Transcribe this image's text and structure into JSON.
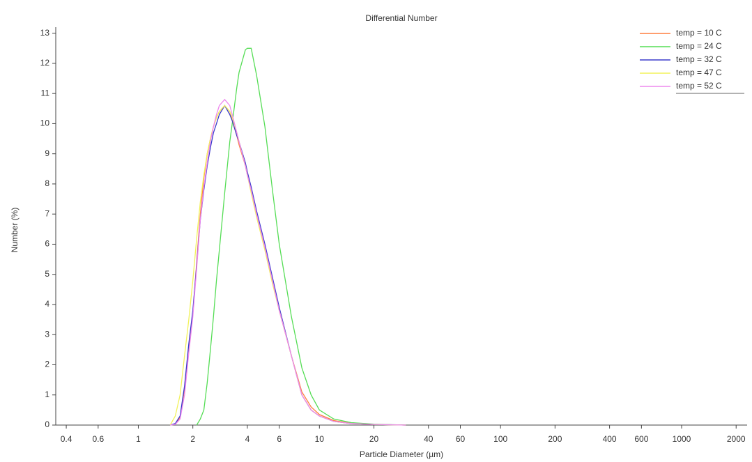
{
  "chart_data": {
    "type": "line",
    "title": "Differential Number",
    "x_label": "Particle Diameter (µm)",
    "y_label": "Number (%)",
    "x_scale": "log",
    "legend": "top-right",
    "grid": false,
    "x": [
      1.5,
      1.6,
      1.7,
      1.8,
      1.9,
      2.0,
      2.1,
      2.2,
      2.3,
      2.4,
      2.5,
      2.6,
      2.7,
      2.8,
      3.0,
      3.2,
      3.3,
      3.5,
      3.6,
      3.9,
      4.0,
      4.2,
      4.5,
      5.0,
      5.5,
      6.0,
      7.0,
      8.0,
      9.0,
      10,
      12,
      15,
      20,
      30
    ],
    "series": [
      {
        "name": "temp = 10 C",
        "color": "#ff7f3f",
        "values": [
          0,
          0.03,
          0.25,
          1.2,
          2.6,
          3.7,
          5.4,
          7.0,
          8.2,
          9.0,
          9.5,
          9.9,
          10.2,
          10.4,
          10.6,
          10.4,
          10.1,
          9.6,
          9.3,
          8.6,
          8.3,
          7.8,
          7.0,
          5.9,
          4.8,
          3.8,
          2.3,
          1.1,
          0.6,
          0.35,
          0.15,
          0.06,
          0.02,
          0
        ]
      },
      {
        "name": "temp = 24 C",
        "color": "#55dd55",
        "values": [
          null,
          null,
          null,
          null,
          null,
          null,
          0,
          0.2,
          0.5,
          1.4,
          2.5,
          3.6,
          4.8,
          5.8,
          7.7,
          9.4,
          10.0,
          11.2,
          11.7,
          12.45,
          12.5,
          12.5,
          11.6,
          9.9,
          7.8,
          6.0,
          3.6,
          1.9,
          1.0,
          0.5,
          0.2,
          0.08,
          0.03,
          0
        ]
      },
      {
        "name": "temp = 32 C",
        "color": "#3a3acc",
        "values": [
          0,
          0.05,
          0.3,
          1.3,
          2.7,
          3.8,
          5.3,
          6.8,
          7.8,
          8.6,
          9.2,
          9.7,
          10.0,
          10.3,
          10.6,
          10.3,
          10.1,
          9.6,
          9.4,
          8.7,
          8.4,
          7.9,
          7.1,
          6.0,
          4.9,
          3.9,
          2.3,
          1.0,
          0.5,
          0.3,
          0.12,
          0.05,
          0.02,
          0
        ]
      },
      {
        "name": "temp = 47 C",
        "color": "#f2f25a",
        "values": [
          0,
          0.3,
          1.0,
          2.3,
          3.5,
          4.8,
          6.2,
          7.4,
          8.3,
          9.0,
          9.5,
          9.9,
          10.2,
          10.4,
          10.6,
          10.4,
          10.2,
          9.7,
          9.4,
          8.6,
          8.3,
          7.7,
          6.9,
          5.8,
          4.7,
          3.8,
          2.3,
          1.0,
          0.5,
          0.3,
          0.12,
          0.05,
          0.02,
          0
        ]
      },
      {
        "name": "temp = 52 C",
        "color": "#ee88ee",
        "values": [
          0,
          0.02,
          0.2,
          1.0,
          2.4,
          3.6,
          5.2,
          6.8,
          7.9,
          8.7,
          9.4,
          9.9,
          10.3,
          10.6,
          10.8,
          10.6,
          10.3,
          9.7,
          9.4,
          8.6,
          8.3,
          7.8,
          7.0,
          5.9,
          4.8,
          3.8,
          2.3,
          1.0,
          0.5,
          0.3,
          0.12,
          0.05,
          0.02,
          0
        ]
      }
    ],
    "xlim": [
      0.35,
      2300
    ],
    "xticks": [
      0.4,
      0.6,
      1,
      2,
      4,
      6,
      10,
      20,
      40,
      60,
      100,
      200,
      400,
      600,
      1000,
      2000
    ],
    "ylim": [
      0,
      13.2
    ],
    "yticks": [
      0,
      1,
      2,
      3,
      4,
      5,
      6,
      7,
      8,
      9,
      10,
      11,
      12,
      13
    ]
  }
}
